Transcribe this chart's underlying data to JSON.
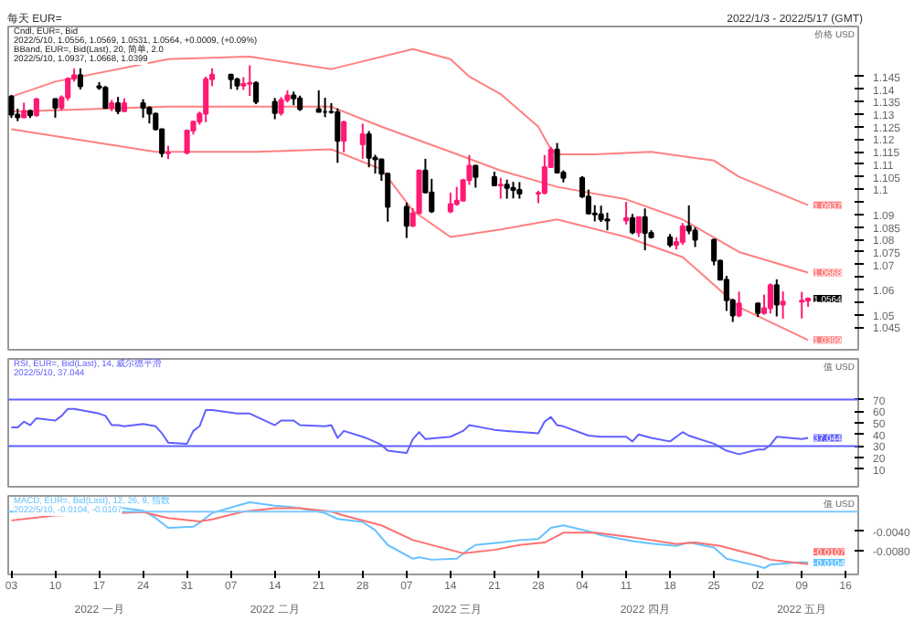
{
  "chart_data": [
    {
      "type": "candlestick",
      "title": "每天 EUR=",
      "subtitle": "2022/1/3 - 2022/5/17 (GMT)",
      "ylabel": "价格 USD",
      "x": [
        "2022-01-03",
        "2022-01-04",
        "2022-01-05",
        "2022-01-06",
        "2022-01-07",
        "2022-01-10",
        "2022-01-11",
        "2022-01-12",
        "2022-01-13",
        "2022-01-14",
        "2022-01-17",
        "2022-01-18",
        "2022-01-19",
        "2022-01-20",
        "2022-01-21",
        "2022-01-24",
        "2022-01-25",
        "2022-01-26",
        "2022-01-27",
        "2022-01-28",
        "2022-01-31",
        "2022-02-01",
        "2022-02-02",
        "2022-02-03",
        "2022-02-04",
        "2022-02-07",
        "2022-02-08",
        "2022-02-09",
        "2022-02-10",
        "2022-02-11",
        "2022-02-14",
        "2022-02-15",
        "2022-02-16",
        "2022-02-17",
        "2022-02-18",
        "2022-02-21",
        "2022-02-22",
        "2022-02-23",
        "2022-02-24",
        "2022-02-25",
        "2022-02-28",
        "2022-03-01",
        "2022-03-02",
        "2022-03-03",
        "2022-03-04",
        "2022-03-07",
        "2022-03-08",
        "2022-03-09",
        "2022-03-10",
        "2022-03-11",
        "2022-03-14",
        "2022-03-15",
        "2022-03-16",
        "2022-03-17",
        "2022-03-18",
        "2022-03-21",
        "2022-03-22",
        "2022-03-23",
        "2022-03-24",
        "2022-03-25",
        "2022-03-28",
        "2022-03-29",
        "2022-03-30",
        "2022-03-31",
        "2022-04-01",
        "2022-04-04",
        "2022-04-05",
        "2022-04-06",
        "2022-04-07",
        "2022-04-08",
        "2022-04-11",
        "2022-04-12",
        "2022-04-13",
        "2022-04-14",
        "2022-04-15",
        "2022-04-18",
        "2022-04-19",
        "2022-04-20",
        "2022-04-21",
        "2022-04-22",
        "2022-04-25",
        "2022-04-26",
        "2022-04-27",
        "2022-04-28",
        "2022-04-29",
        "2022-05-02",
        "2022-05-03",
        "2022-05-04",
        "2022-05-05",
        "2022-05-06",
        "2022-05-09",
        "2022-05-10"
      ],
      "ohlc": [
        [
          1.137,
          1.1377,
          1.1285,
          1.1298
        ],
        [
          1.1298,
          1.1322,
          1.1272,
          1.1287
        ],
        [
          1.1287,
          1.1346,
          1.1286,
          1.1313
        ],
        [
          1.1313,
          1.1318,
          1.1285,
          1.1296
        ],
        [
          1.1296,
          1.1364,
          1.129,
          1.136
        ],
        [
          1.136,
          1.1363,
          1.1286,
          1.1326
        ],
        [
          1.1326,
          1.1375,
          1.1315,
          1.1367
        ],
        [
          1.1367,
          1.1447,
          1.1354,
          1.1441
        ],
        [
          1.1441,
          1.1482,
          1.143,
          1.1456
        ],
        [
          1.1456,
          1.1483,
          1.1399,
          1.1411
        ],
        [
          1.1411,
          1.1428,
          1.1397,
          1.1406
        ],
        [
          1.1406,
          1.1413,
          1.1322,
          1.1325
        ],
        [
          1.1325,
          1.1357,
          1.1312,
          1.1344
        ],
        [
          1.1344,
          1.1369,
          1.13,
          1.1312
        ],
        [
          1.1312,
          1.1363,
          1.1309,
          1.1344
        ],
        [
          1.1344,
          1.136,
          1.1286,
          1.1326
        ],
        [
          1.1326,
          1.1332,
          1.1263,
          1.1302
        ],
        [
          1.1302,
          1.1306,
          1.1235,
          1.124
        ],
        [
          1.124,
          1.1242,
          1.1128,
          1.1144
        ],
        [
          1.1144,
          1.1174,
          1.1121,
          1.1146
        ],
        [
          1.1146,
          1.1236,
          1.114,
          1.1235
        ],
        [
          1.1235,
          1.1273,
          1.1219,
          1.127
        ],
        [
          1.127,
          1.131,
          1.1258,
          1.1302
        ],
        [
          1.1302,
          1.145,
          1.1268,
          1.144
        ],
        [
          1.144,
          1.1483,
          1.1412,
          1.1458
        ],
        [
          1.1458,
          1.1461,
          1.14,
          1.144
        ],
        [
          1.144,
          1.1445,
          1.1397,
          1.1414
        ],
        [
          1.1414,
          1.1448,
          1.1397,
          1.1421
        ],
        [
          1.1421,
          1.1495,
          1.1373,
          1.1425
        ],
        [
          1.1425,
          1.1431,
          1.134,
          1.1349
        ],
        [
          1.1349,
          1.1365,
          1.128,
          1.1305
        ],
        [
          1.1305,
          1.1368,
          1.1294,
          1.1357
        ],
        [
          1.1357,
          1.1395,
          1.1347,
          1.1375
        ],
        [
          1.1375,
          1.139,
          1.1336,
          1.1363
        ],
        [
          1.1363,
          1.1374,
          1.1313,
          1.132
        ],
        [
          1.132,
          1.1395,
          1.1308,
          1.1309
        ],
        [
          1.1309,
          1.1366,
          1.1288,
          1.1309
        ],
        [
          1.1309,
          1.1344,
          1.1302,
          1.1308
        ],
        [
          1.1308,
          1.1323,
          1.1106,
          1.1194
        ],
        [
          1.1194,
          1.1274,
          1.1148,
          1.1268
        ],
        [
          1.118,
          1.1262,
          1.1122,
          1.122
        ],
        [
          1.122,
          1.1233,
          1.1088,
          1.1126
        ],
        [
          1.1126,
          1.1138,
          1.1063,
          1.112
        ],
        [
          1.112,
          1.1122,
          1.1034,
          1.1062
        ],
        [
          1.1062,
          1.1067,
          1.0871,
          1.093
        ],
        [
          1.093,
          1.0947,
          1.0806,
          1.0855
        ],
        [
          1.0855,
          1.0925,
          1.085,
          1.0905
        ],
        [
          1.0905,
          1.1079,
          1.0903,
          1.1075
        ],
        [
          1.1075,
          1.1122,
          1.0985,
          1.0988
        ],
        [
          1.0988,
          1.1042,
          1.0906,
          1.0912
        ],
        [
          1.0912,
          1.0987,
          1.0905,
          1.0941
        ],
        [
          1.0941,
          1.101,
          1.0935,
          1.0955
        ],
        [
          1.0955,
          1.1042,
          1.0953,
          1.1037
        ],
        [
          1.1037,
          1.1137,
          1.1018,
          1.1094
        ],
        [
          1.1094,
          1.1097,
          1.1007,
          1.105
        ],
        [
          1.105,
          1.1071,
          1.1016,
          1.1016
        ],
        [
          1.1016,
          1.1046,
          1.0963,
          1.1019
        ],
        [
          1.1019,
          1.1039,
          1.0963,
          1.1006
        ],
        [
          1.1006,
          1.103,
          1.0964,
          1.0998
        ],
        [
          1.0998,
          1.1029,
          1.0963,
          1.0983
        ],
        [
          1.0983,
          1.0994,
          1.0945,
          1.0986
        ],
        [
          1.0986,
          1.1137,
          1.098,
          1.1089
        ],
        [
          1.1089,
          1.117,
          1.1086,
          1.1159
        ],
        [
          1.1159,
          1.1185,
          1.1066,
          1.1067
        ],
        [
          1.1067,
          1.1076,
          1.1028,
          1.1046
        ],
        [
          1.1046,
          1.1053,
          1.0966,
          1.0971
        ],
        [
          1.0971,
          1.0999,
          1.09,
          1.0904
        ],
        [
          1.0904,
          1.0937,
          1.0872,
          1.09
        ],
        [
          1.09,
          1.0935,
          1.087,
          1.088
        ],
        [
          1.088,
          1.0907,
          1.0837,
          1.0876
        ],
        [
          1.0876,
          1.095,
          1.086,
          1.0886
        ],
        [
          1.0886,
          1.0902,
          1.0821,
          1.0828
        ],
        [
          1.0828,
          1.0891,
          1.081,
          1.0889
        ],
        [
          1.0889,
          1.0924,
          1.0757,
          1.0826
        ],
        [
          1.0826,
          1.0837,
          1.0804,
          1.0809
        ],
        [
          1.0809,
          1.0822,
          1.0769,
          1.0778
        ],
        [
          1.0778,
          1.0809,
          1.076,
          1.079
        ],
        [
          1.079,
          1.0866,
          1.0778,
          1.0853
        ],
        [
          1.0853,
          1.0936,
          1.0821,
          1.0836
        ],
        [
          1.0836,
          1.0848,
          1.077,
          1.0799
        ],
        [
          1.0799,
          1.0802,
          1.0697,
          1.0715
        ],
        [
          1.0715,
          1.0719,
          1.0637,
          1.064
        ],
        [
          1.064,
          1.0655,
          1.0515,
          1.0558
        ],
        [
          1.0558,
          1.0563,
          1.0471,
          1.0497
        ],
        [
          1.0497,
          1.0592,
          1.049,
          1.0545
        ],
        [
          1.0545,
          1.0547,
          1.0491,
          1.0507
        ],
        [
          1.0507,
          1.058,
          1.05,
          1.0526
        ],
        [
          1.0526,
          1.0625,
          1.0505,
          1.0618
        ],
        [
          1.0618,
          1.0641,
          1.0493,
          1.054
        ],
        [
          1.054,
          1.0593,
          1.0484,
          1.0552
        ],
        [
          1.0552,
          1.0591,
          1.0485,
          1.0556
        ],
        [
          1.0556,
          1.0569,
          1.0531,
          1.0564
        ]
      ],
      "colors": [
        "#000000",
        "#000000",
        "#ff1a75",
        "#000000",
        "#ff1a75",
        "#000000",
        "#ff1a75",
        "#ff1a75",
        "#ff1a75",
        "#000000",
        "#000000",
        "#000000",
        "#ff1a75",
        "#000000",
        "#ff1a75",
        "#000000",
        "#000000",
        "#000000",
        "#000000",
        "#ff1a75",
        "#ff1a75",
        "#ff1a75",
        "#ff1a75",
        "#ff1a75",
        "#ff1a75",
        "#000000",
        "#000000",
        "#ff1a75",
        "#ff1a75",
        "#000000",
        "#000000",
        "#ff1a75",
        "#ff1a75",
        "#000000",
        "#000000",
        "#000000",
        "#000000",
        "#000000",
        "#000000",
        "#ff1a75",
        "#ff1a75",
        "#000000",
        "#000000",
        "#000000",
        "#000000",
        "#000000",
        "#ff1a75",
        "#ff1a75",
        "#000000",
        "#000000",
        "#ff1a75",
        "#ff1a75",
        "#ff1a75",
        "#ff1a75",
        "#000000",
        "#000000",
        "#ff1a75",
        "#000000",
        "#000000",
        "#000000",
        "#ff1a75",
        "#ff1a75",
        "#ff1a75",
        "#000000",
        "#000000",
        "#000000",
        "#000000",
        "#000000",
        "#000000",
        "#000000",
        "#ff1a75",
        "#000000",
        "#ff1a75",
        "#000000",
        "#000000",
        "#000000",
        "#ff1a75",
        "#ff1a75",
        "#000000",
        "#000000",
        "#000000",
        "#000000",
        "#000000",
        "#000000",
        "#ff1a75",
        "#000000",
        "#ff1a75",
        "#ff1a75",
        "#000000",
        "#ff1a75",
        "#ff1a75",
        "#ff1a75"
      ],
      "series": [
        {
          "type": "line",
          "color": "#ff8080",
          "x": [
            "2022-01-03",
            "2022-01-10",
            "2022-01-28",
            "2022-02-10",
            "2022-02-23",
            "2022-03-08",
            "2022-03-14",
            "2022-03-17",
            "2022-03-22",
            "2022-03-28",
            "2022-03-30",
            "2022-03-31",
            "2022-04-06",
            "2022-04-15",
            "2022-04-25",
            "2022-04-29",
            "2022-05-10"
          ],
          "values": [
            1.137,
            1.143,
            1.152,
            1.153,
            1.148,
            1.156,
            1.152,
            1.145,
            1.138,
            1.125,
            1.116,
            1.114,
            1.114,
            1.115,
            1.1115,
            1.105,
            1.0937
          ],
          "value_labels": [
            null,
            null,
            null,
            null,
            null,
            null,
            null,
            null,
            null,
            null,
            null,
            null,
            null,
            null,
            null,
            null,
            "1.0937"
          ]
        },
        {
          "type": "line",
          "color": "#ff8080",
          "x": [
            "2022-01-03",
            "2022-01-28",
            "2022-02-23",
            "2022-03-03",
            "2022-03-14",
            "2022-03-22",
            "2022-03-31",
            "2022-04-11",
            "2022-04-20",
            "2022-04-29",
            "2022-05-10"
          ],
          "values": [
            1.131,
            1.133,
            1.133,
            1.125,
            1.115,
            1.1075,
            1.101,
            1.096,
            1.088,
            1.075,
            1.0668
          ],
          "value_labels": [
            null,
            null,
            null,
            null,
            null,
            null,
            null,
            null,
            null,
            null,
            "1.0668"
          ]
        },
        {
          "type": "line",
          "color": "#ff8080",
          "x": [
            "2022-01-03",
            "2022-01-26",
            "2022-02-11",
            "2022-02-23",
            "2022-03-03",
            "2022-03-08",
            "2022-03-14",
            "2022-03-22",
            "2022-03-31",
            "2022-04-11",
            "2022-04-20",
            "2022-04-29",
            "2022-05-10"
          ],
          "values": [
            1.124,
            1.115,
            1.115,
            1.116,
            1.108,
            1.0915,
            1.081,
            1.084,
            1.088,
            1.081,
            1.073,
            1.053,
            1.0399
          ],
          "value_labels": [
            null,
            null,
            null,
            null,
            null,
            null,
            null,
            null,
            null,
            null,
            null,
            null,
            "1.0399"
          ]
        }
      ],
      "value_labels": [
        null,
        null,
        null,
        null,
        null,
        null,
        null,
        null,
        null,
        null,
        null,
        null,
        null,
        null,
        null,
        null,
        null,
        null,
        null,
        null,
        null,
        null,
        null,
        null,
        null,
        null,
        null,
        null,
        null,
        null,
        null,
        null,
        null,
        null,
        null,
        null,
        null,
        null,
        null,
        null,
        null,
        null,
        null,
        null,
        null,
        null,
        null,
        null,
        null,
        null,
        null,
        null,
        null,
        null,
        null,
        null,
        null,
        null,
        null,
        null,
        null,
        null,
        null,
        null,
        null,
        null,
        null,
        null,
        null,
        null,
        null,
        null,
        null,
        null,
        null,
        null,
        null,
        null,
        null,
        null,
        null,
        null,
        null,
        null,
        null,
        null,
        null,
        null,
        null,
        null,
        null,
        "1.0564"
      ],
      "xlim": [
        "2022-01-02T12:00",
        "2022-05-18"
      ],
      "ylim": [
        1.036,
        1.165
      ],
      "yticks": [
        1.045,
        1.05,
        {
          "value": 1.055,
          "label": null
        },
        1.06,
        {
          "value": 1.065,
          "label": null
        },
        1.07,
        1.075,
        1.08,
        1.085,
        1.09,
        {
          "value": 1.095,
          "label": null
        },
        1.1,
        1.105,
        1.11,
        1.115,
        1.12,
        1.125,
        1.13,
        1.135,
        1.14,
        1.145
      ],
      "tick_labels": "y",
      "annotations": [
        "Cndl, EUR=, Bid",
        "2022/5/10, 1.0556, 1.0569, 1.0531, 1.0564, +0.0009, (+0.09%)",
        "BBand, EUR=, Bid(Last), 20, 简单, 2.0",
        "2022/5/10, 1.0937, 1.0668, 1.0399"
      ]
    },
    {
      "type": "line",
      "ylabel": "值 USD",
      "series": [
        {
          "color": "#6060ff",
          "x": [
            "2022-01-03",
            "2022-01-04",
            "2022-01-05",
            "2022-01-06",
            "2022-01-07",
            "2022-01-10",
            "2022-01-11",
            "2022-01-12",
            "2022-01-13",
            "2022-01-17",
            "2022-01-18",
            "2022-01-19",
            "2022-01-20",
            "2022-01-21",
            "2022-01-24",
            "2022-01-26",
            "2022-01-27",
            "2022-01-28",
            "2022-01-31",
            "2022-02-01",
            "2022-02-02",
            "2022-02-03",
            "2022-02-04",
            "2022-02-08",
            "2022-02-10",
            "2022-02-14",
            "2022-02-15",
            "2022-02-17",
            "2022-02-18",
            "2022-02-22",
            "2022-02-23",
            "2022-02-24",
            "2022-02-25",
            "2022-02-28",
            "2022-03-01",
            "2022-03-03",
            "2022-03-04",
            "2022-03-07",
            "2022-03-08",
            "2022-03-09",
            "2022-03-10",
            "2022-03-14",
            "2022-03-16",
            "2022-03-17",
            "2022-03-21",
            "2022-03-23",
            "2022-03-28",
            "2022-03-29",
            "2022-03-30",
            "2022-03-31",
            "2022-04-01",
            "2022-04-05",
            "2022-04-07",
            "2022-04-11",
            "2022-04-12",
            "2022-04-13",
            "2022-04-15",
            "2022-04-18",
            "2022-04-20",
            "2022-04-21",
            "2022-04-25",
            "2022-04-27",
            "2022-04-29",
            "2022-05-02",
            "2022-05-03",
            "2022-05-04",
            "2022-05-05",
            "2022-05-09",
            "2022-05-10"
          ],
          "values": [
            46,
            46,
            51,
            48,
            54,
            52,
            56,
            62,
            62,
            58,
            56,
            48,
            48,
            47,
            49,
            47,
            41,
            33,
            32,
            43,
            47,
            61,
            61,
            58,
            58,
            48,
            52,
            52,
            48,
            47,
            48,
            37,
            43,
            38,
            36,
            31,
            26,
            24,
            36,
            42,
            36,
            38,
            43,
            48,
            44,
            43,
            41,
            51,
            55,
            48,
            47,
            39,
            38,
            38,
            34,
            40,
            37,
            34,
            42,
            39,
            32,
            26,
            23,
            27,
            27,
            31,
            38,
            36,
            37.044
          ],
          "value_labels": [
            null,
            null,
            null,
            null,
            null,
            null,
            null,
            null,
            null,
            null,
            null,
            null,
            null,
            null,
            null,
            null,
            null,
            null,
            null,
            null,
            null,
            null,
            null,
            null,
            null,
            null,
            null,
            null,
            null,
            null,
            null,
            null,
            null,
            null,
            null,
            null,
            null,
            null,
            null,
            null,
            null,
            null,
            null,
            null,
            null,
            null,
            null,
            null,
            null,
            null,
            null,
            null,
            null,
            null,
            null,
            null,
            null,
            null,
            null,
            null,
            null,
            null,
            null,
            null,
            null,
            null,
            null,
            null,
            "37.044"
          ]
        }
      ],
      "xlim": [
        "2022-01-02T12:00",
        "2022-05-18"
      ],
      "ylim": [
        -5,
        105
      ],
      "yticks": [
        10,
        20,
        30,
        40,
        50,
        60,
        70
      ],
      "tick_labels": "y",
      "ref_lines": [
        {
          "axis": "y",
          "value": 70,
          "color": "#6060ff"
        },
        {
          "axis": "y",
          "value": 30,
          "color": "#6060ff"
        }
      ],
      "annotations": [
        "RSI, EUR=, Bid(Last), 14, 威尔德平滑",
        "2022/5/10, 37.044"
      ]
    },
    {
      "type": "line",
      "ylabel": "值 USD",
      "series": [
        {
          "color": "#66c2ff",
          "x": [
            "2022-01-19",
            "2022-01-24",
            "2022-01-26",
            "2022-01-28",
            "2022-02-01",
            "2022-02-02",
            "2022-02-04",
            "2022-02-08",
            "2022-02-10",
            "2022-02-14",
            "2022-02-16",
            "2022-02-18",
            "2022-02-22",
            "2022-02-24",
            "2022-02-28",
            "2022-03-02",
            "2022-03-04",
            "2022-03-08",
            "2022-03-09",
            "2022-03-11",
            "2022-03-15",
            "2022-03-17",
            "2022-03-18",
            "2022-03-22",
            "2022-03-25",
            "2022-03-28",
            "2022-03-30",
            "2022-04-01",
            "2022-04-05",
            "2022-04-07",
            "2022-04-12",
            "2022-04-15",
            "2022-04-19",
            "2022-04-21",
            "2022-04-25",
            "2022-04-27",
            "2022-05-02",
            "2022-05-03",
            "2022-05-04",
            "2022-05-09",
            "2022-05-10"
          ],
          "values": [
            0.001,
            0.0002,
            -0.0013,
            -0.0033,
            -0.0031,
            -0.0023,
            -0.0003,
            0.0012,
            0.0019,
            0.0012,
            0.001,
            0.0007,
            -0.0003,
            -0.0015,
            -0.0021,
            -0.0038,
            -0.0068,
            -0.0096,
            -0.0093,
            -0.0098,
            -0.0096,
            -0.0076,
            -0.0068,
            -0.0063,
            -0.0058,
            -0.0056,
            -0.0033,
            -0.0028,
            -0.004,
            -0.0048,
            -0.006,
            -0.0065,
            -0.007,
            -0.0063,
            -0.0073,
            -0.0096,
            -0.0111,
            -0.0115,
            -0.0108,
            -0.0103,
            -0.0104
          ],
          "value_labels": [
            null,
            null,
            null,
            null,
            null,
            null,
            null,
            null,
            null,
            null,
            null,
            null,
            null,
            null,
            null,
            null,
            null,
            null,
            null,
            null,
            null,
            null,
            null,
            null,
            null,
            null,
            null,
            null,
            null,
            null,
            null,
            null,
            null,
            null,
            null,
            null,
            null,
            null,
            null,
            null,
            "-0.0104"
          ]
        },
        {
          "color": "#ff7070",
          "x": [
            "2022-01-03",
            "2022-01-10",
            "2022-01-24",
            "2022-01-28",
            "2022-02-02",
            "2022-02-04",
            "2022-02-09",
            "2022-02-14",
            "2022-02-18",
            "2022-02-23",
            "2022-02-25",
            "2022-03-03",
            "2022-03-08",
            "2022-03-14",
            "2022-03-16",
            "2022-03-21",
            "2022-03-25",
            "2022-03-29",
            "2022-04-01",
            "2022-04-06",
            "2022-04-11",
            "2022-04-15",
            "2022-04-19",
            "2022-04-22",
            "2022-04-26",
            "2022-05-02",
            "2022-05-04",
            "2022-05-10"
          ],
          "values": [
            -0.0018,
            -0.0008,
            -0.0001,
            -0.0013,
            -0.002,
            -0.0016,
            0.0,
            0.0007,
            0.0007,
            0.0,
            -0.0008,
            -0.0028,
            -0.0058,
            -0.0078,
            -0.0085,
            -0.0078,
            -0.0068,
            -0.0063,
            -0.0043,
            -0.0043,
            -0.0051,
            -0.0058,
            -0.0066,
            -0.0063,
            -0.007,
            -0.009,
            -0.0098,
            -0.0107
          ],
          "value_labels": [
            null,
            null,
            null,
            null,
            null,
            null,
            null,
            null,
            null,
            null,
            null,
            null,
            null,
            null,
            null,
            null,
            null,
            null,
            null,
            null,
            null,
            null,
            null,
            null,
            null,
            null,
            null,
            "-0.0107"
          ]
        }
      ],
      "xlim": [
        "2022-01-02T12:00",
        "2022-05-18"
      ],
      "ylim": [
        -0.0128,
        0.0032
      ],
      "xticks": [
        {
          "value": "2022-01-03",
          "label": "03"
        },
        {
          "value": "2022-01-10",
          "label": "10"
        },
        {
          "value": "2022-01-17",
          "label": "17"
        },
        {
          "value": "2022-01-24",
          "label": "24"
        },
        {
          "value": "2022-01-31",
          "label": "31"
        },
        {
          "value": "2022-02-07",
          "label": "07"
        },
        {
          "value": "2022-02-14",
          "label": "14"
        },
        {
          "value": "2022-02-21",
          "label": "21"
        },
        {
          "value": "2022-02-28",
          "label": "28"
        },
        {
          "value": "2022-03-07",
          "label": "07"
        },
        {
          "value": "2022-03-14",
          "label": "14"
        },
        {
          "value": "2022-03-21",
          "label": "21"
        },
        {
          "value": "2022-03-28",
          "label": "28"
        },
        {
          "value": "2022-04-04",
          "label": "04"
        },
        {
          "value": "2022-04-11",
          "label": "11"
        },
        {
          "value": "2022-04-18",
          "label": "18"
        },
        {
          "value": "2022-04-25",
          "label": "25"
        },
        {
          "value": "2022-05-02",
          "label": "02"
        },
        {
          "value": "2022-05-09",
          "label": "09"
        },
        {
          "value": "2022-05-16",
          "label": "16"
        }
      ],
      "x2lim": [
        "2022-01-02T12:00",
        "2022-05-18"
      ],
      "x2ticks": [
        {
          "value": "2022-01-17",
          "label": "2022 一月"
        },
        {
          "value": "2022-02-14",
          "label": "2022 二月"
        },
        {
          "value": "2022-03-15",
          "label": "2022 三月"
        },
        {
          "value": "2022-04-14",
          "label": "2022 四月"
        },
        {
          "value": "2022-05-09",
          "label": "2022 五月"
        }
      ],
      "yticks": [
        {
          "value": -0.004,
          "label": "-0.0040"
        },
        {
          "value": -0.008,
          "label": "-0.0080"
        }
      ],
      "ref_lines": [
        {
          "axis": "y",
          "value": 0,
          "color": "#80c8ff"
        }
      ],
      "annotations": [
        "MACD, EUR=, Bid(Last), 12, 26, 9, 指数",
        "2022/5/10, -0.0104, -0.0107"
      ]
    }
  ]
}
